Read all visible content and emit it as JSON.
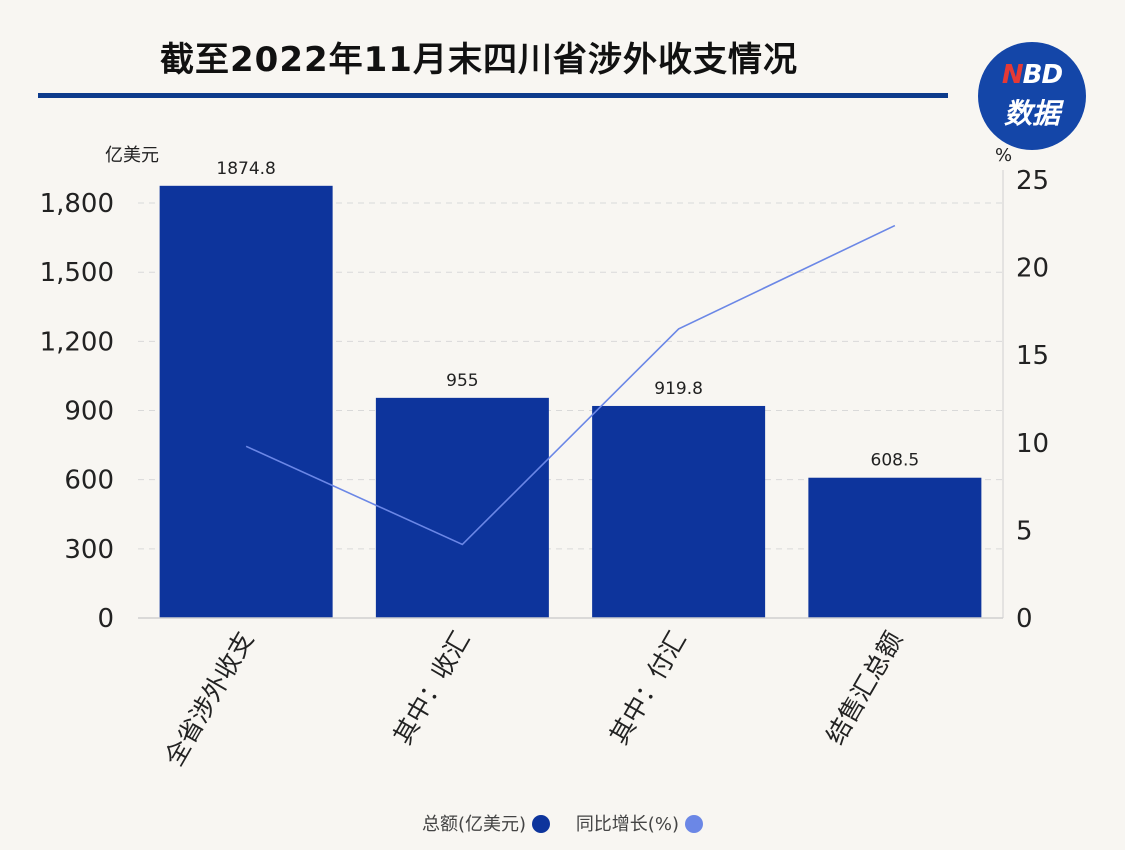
{
  "header": {
    "title": "截至2022年11月末四川省涉外收支情况",
    "logo_top_n": "N",
    "logo_top_rest": "BD",
    "logo_bottom": "数据"
  },
  "colors": {
    "bar": "#0d349c",
    "line": "#6b87e6",
    "title_rule": "#0d3b8c"
  },
  "chart_data": {
    "type": "bar",
    "title": "截至2022年11月末四川省涉外收支情况",
    "categories": [
      "全省涉外收支",
      "其中：收汇",
      "其中：付汇",
      "结售汇总额"
    ],
    "series": [
      {
        "name": "总额(亿美元)",
        "type": "bar",
        "axis": "left",
        "values": [
          1874.8,
          955,
          919.8,
          608.5
        ],
        "labels": [
          "1874.8",
          "955",
          "919.8",
          "608.5"
        ]
      },
      {
        "name": "同比增长(%)",
        "type": "line",
        "axis": "right",
        "values": [
          9.8,
          4.2,
          16.5,
          22.4
        ]
      }
    ],
    "y_left": {
      "unit": "亿美元",
      "ylim": [
        0,
        1900
      ],
      "ticks": [
        0,
        300,
        600,
        900,
        1200,
        1500,
        1800
      ],
      "tick_labels": [
        "0",
        "300",
        "600",
        "900",
        "1,200",
        "1,500",
        "1,800"
      ]
    },
    "y_right": {
      "unit": "%",
      "ylim": [
        0,
        25
      ],
      "ticks": [
        0,
        5,
        10,
        15,
        20,
        25
      ],
      "tick_labels": [
        "0",
        "5",
        "10",
        "15",
        "20",
        "25"
      ]
    },
    "grid": "dashed horizontal",
    "legend": "bottom-center"
  }
}
